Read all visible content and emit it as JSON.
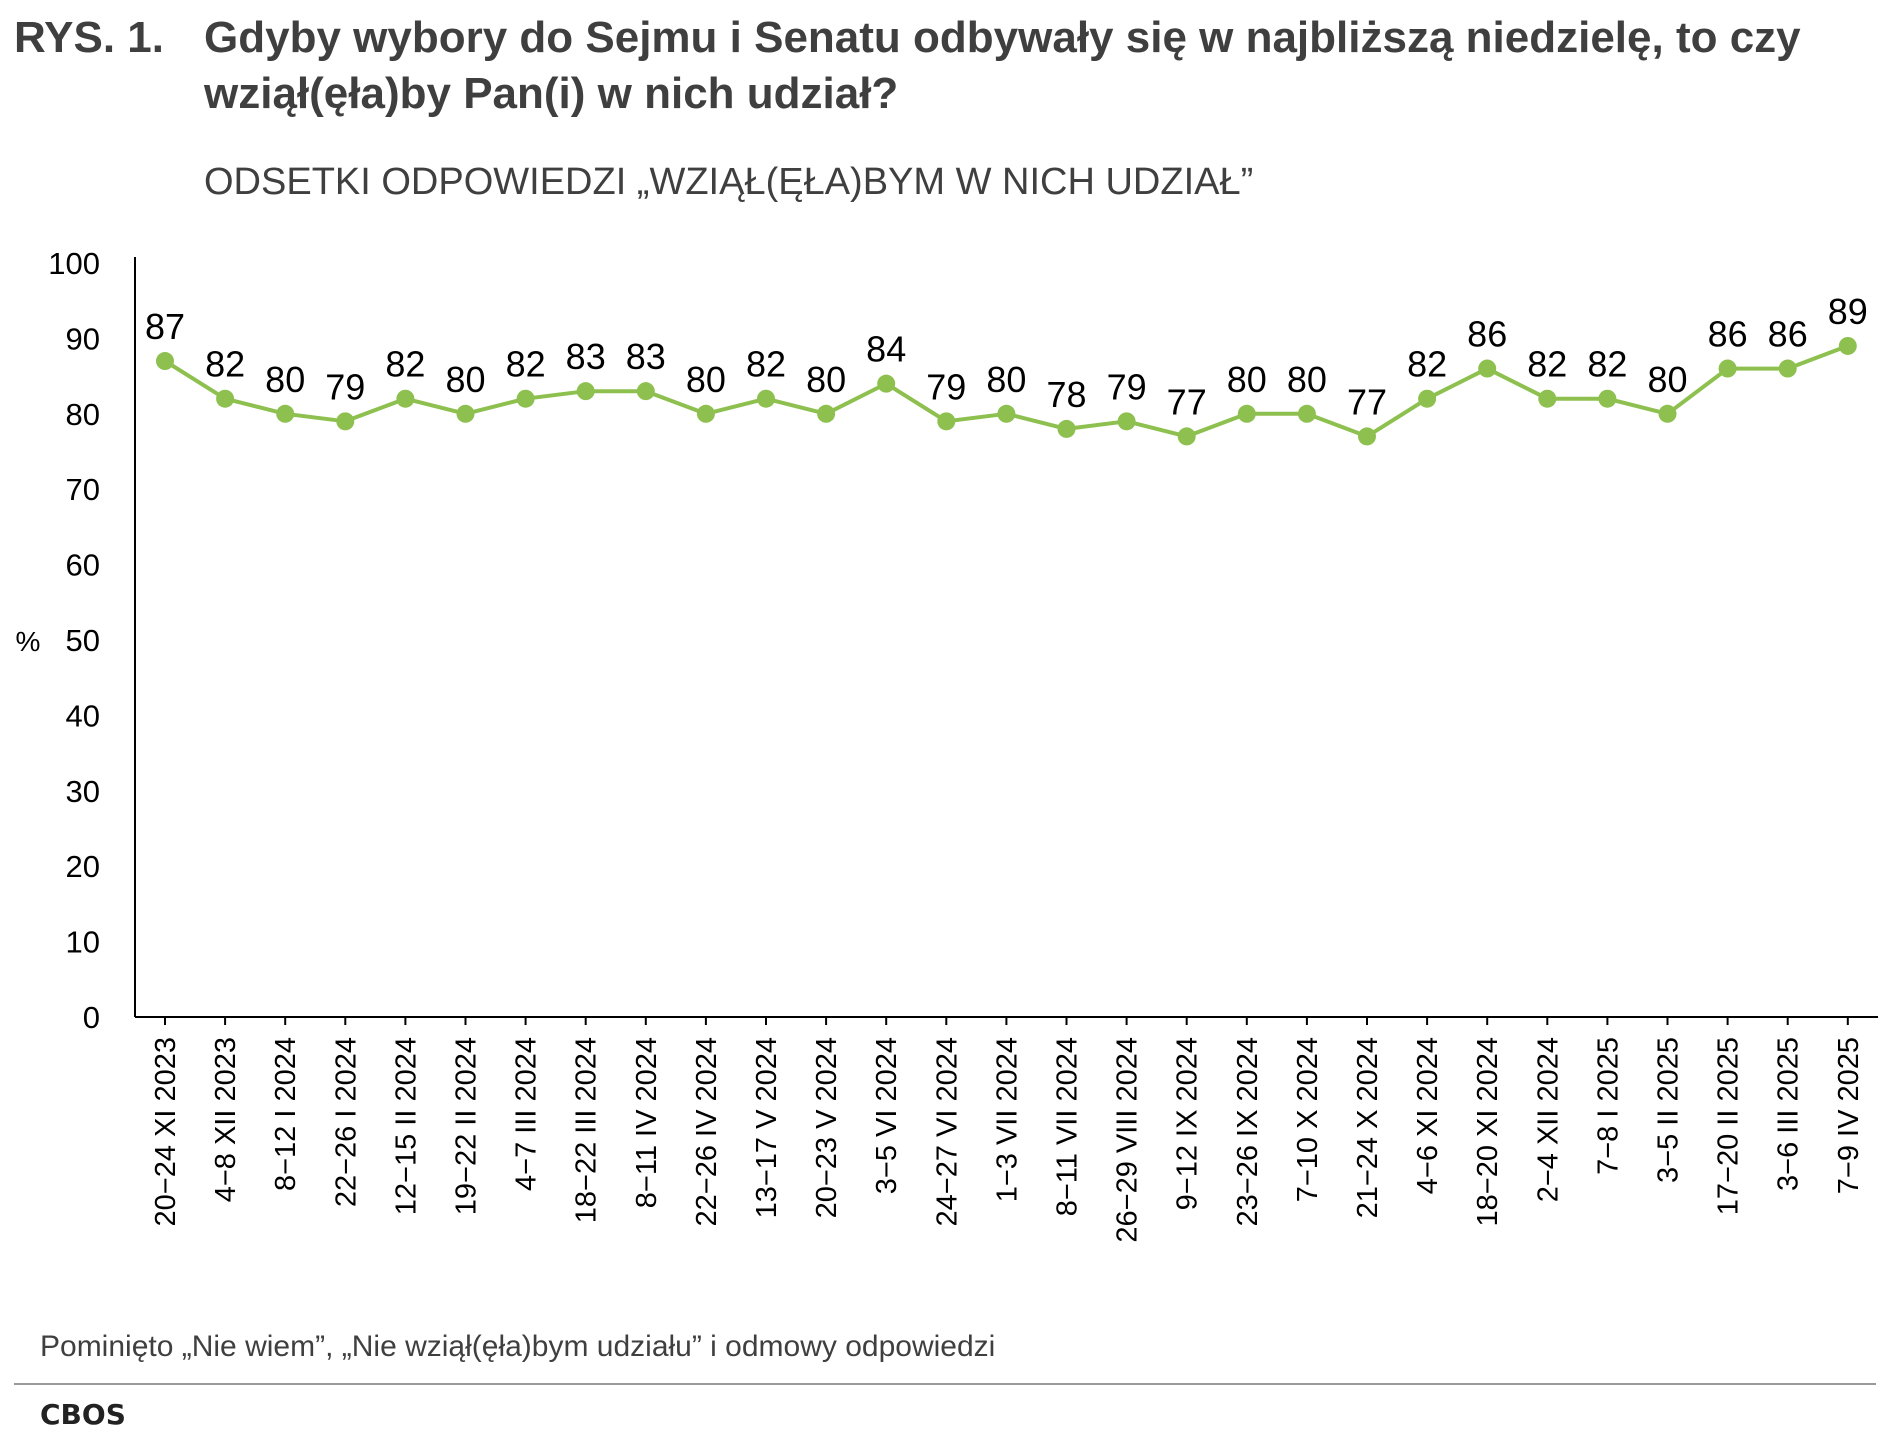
{
  "title": {
    "prefix": "RYS. 1.",
    "text": "Gdyby wybory do Sejmu i Senatu odbywały się w najbliższą niedzielę, to czy wziął(ęła)by Pan(i) w nich udział?"
  },
  "subtitle": "ODSETKI ODPOWIEDZI „WZIĄŁ(ĘŁA)BYM W NICH UDZIAŁ”",
  "note": "Pominięto „Nie wiem”, „Nie wziął(ęła)bym udziału” i odmowy odpowiedzi",
  "source": "CBOS",
  "colors": {
    "line": "#8dc04f",
    "text": "#3f3f3f",
    "axis": "#000000"
  },
  "chart_data": {
    "type": "line",
    "title": "",
    "xlabel": "",
    "ylabel": "%",
    "ylim": [
      0,
      100
    ],
    "yticks": [
      0,
      10,
      20,
      30,
      40,
      50,
      60,
      70,
      80,
      90,
      100
    ],
    "grid": false,
    "legend": "none",
    "data_labels": true,
    "categories": [
      "20−24 XI 2023",
      "4−8 XII 2023",
      "8−12 I 2024",
      "22−26 I 2024",
      "12−15 II 2024",
      "19−22 II 2024",
      "4−7 III 2024",
      "18−22 III 2024",
      "8−11 IV 2024",
      "22−26 IV 2024",
      "13−17 V 2024",
      "20−23 V 2024",
      "3−5 VI 2024",
      "24−27 VI 2024",
      "1−3 VII 2024",
      "8−11 VII 2024",
      "26−29 VIII 2024",
      "9−12 IX 2024",
      "23−26 IX 2024",
      "7−10 X 2024",
      "21−24 X 2024",
      "4−6 XI 2024",
      "18−20 XI 2024",
      "2−4 XII 2024",
      "7−8 I 2025",
      "3−5 II 2025",
      "17−20 II 2025",
      "3−6 III 2025",
      "7−9 IV 2025"
    ],
    "values": [
      87,
      82,
      80,
      79,
      82,
      80,
      82,
      83,
      83,
      80,
      82,
      80,
      84,
      79,
      80,
      78,
      79,
      77,
      80,
      80,
      77,
      82,
      86,
      82,
      82,
      80,
      86,
      86,
      89
    ]
  }
}
